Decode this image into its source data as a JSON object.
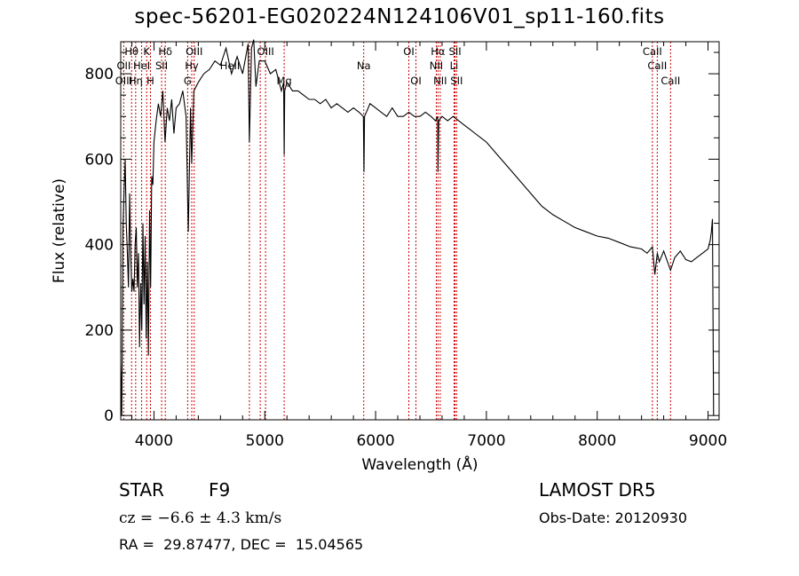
{
  "chart_data": {
    "type": "line",
    "title": "spec-56201-EG020224N124106V01_sp11-160.fits",
    "xlabel": "Wavelength (Å)",
    "ylabel": "Flux (relative)",
    "xlim": [
      3700,
      9100
    ],
    "ylim": [
      -10,
      875
    ],
    "xticks": [
      4000,
      5000,
      6000,
      7000,
      8000,
      9000
    ],
    "yticks": [
      0,
      200,
      400,
      600,
      800
    ],
    "grid": false,
    "series": [
      {
        "x": [
          3700,
          3710,
          3720,
          3730,
          3740,
          3750,
          3760,
          3770,
          3780,
          3790,
          3800,
          3810,
          3820,
          3830,
          3840,
          3850,
          3860,
          3870,
          3880,
          3890,
          3900,
          3910,
          3920,
          3930,
          3940,
          3950,
          3960,
          3970,
          3980,
          3990,
          4000,
          4020,
          4040,
          4060,
          4080,
          4100,
          4120,
          4140,
          4160,
          4180,
          4200,
          4230,
          4260,
          4290,
          4310,
          4330,
          4340,
          4360,
          4400,
          4450,
          4500,
          4550,
          4600,
          4650,
          4700,
          4750,
          4800,
          4850,
          4861,
          4880,
          4900,
          4920,
          4950,
          5000,
          5050,
          5100,
          5150,
          5170,
          5175,
          5180,
          5200,
          5250,
          5300,
          5350,
          5400,
          5450,
          5500,
          5550,
          5600,
          5650,
          5700,
          5750,
          5800,
          5850,
          5890,
          5895,
          5900,
          5950,
          6000,
          6050,
          6100,
          6150,
          6200,
          6250,
          6300,
          6350,
          6400,
          6450,
          6500,
          6540,
          6560,
          6563,
          6570,
          6600,
          6650,
          6700,
          6750,
          6800,
          6850,
          6900,
          6950,
          7000,
          7100,
          7200,
          7300,
          7400,
          7500,
          7600,
          7700,
          7800,
          7900,
          8000,
          8100,
          8200,
          8300,
          8400,
          8450,
          8498,
          8520,
          8542,
          8560,
          8600,
          8662,
          8700,
          8750,
          8800,
          8850,
          8900,
          8950,
          9000,
          9020,
          9030,
          9040,
          9050
        ],
        "values": [
          120,
          0,
          440,
          520,
          600,
          450,
          380,
          300,
          520,
          380,
          290,
          320,
          290,
          400,
          440,
          300,
          380,
          160,
          310,
          200,
          450,
          260,
          420,
          180,
          360,
          140,
          480,
          300,
          560,
          540,
          640,
          690,
          730,
          700,
          760,
          640,
          720,
          690,
          740,
          660,
          720,
          730,
          760,
          700,
          430,
          720,
          590,
          760,
          780,
          800,
          810,
          830,
          820,
          860,
          800,
          840,
          800,
          870,
          640,
          860,
          880,
          770,
          830,
          830,
          800,
          810,
          760,
          780,
          610,
          760,
          780,
          760,
          760,
          750,
          740,
          740,
          730,
          740,
          720,
          730,
          720,
          710,
          720,
          710,
          700,
          570,
          700,
          730,
          720,
          710,
          700,
          720,
          700,
          700,
          710,
          700,
          700,
          710,
          700,
          690,
          700,
          570,
          690,
          700,
          690,
          700,
          690,
          680,
          670,
          660,
          650,
          640,
          610,
          580,
          550,
          520,
          490,
          470,
          455,
          440,
          430,
          420,
          415,
          405,
          395,
          390,
          380,
          395,
          330,
          380,
          360,
          385,
          340,
          370,
          385,
          365,
          360,
          370,
          380,
          390,
          410,
          430,
          460,
          0
        ]
      }
    ],
    "lines": {
      "labels": [
        {
          "text": "Hθ",
          "x": 3798,
          "row": 1
        },
        {
          "text": "K",
          "x": 3934,
          "row": 1
        },
        {
          "text": "Hδ",
          "x": 4102,
          "row": 1
        },
        {
          "text": "OIII",
          "x": 4363,
          "row": 1
        },
        {
          "text": "OIII",
          "x": 5007,
          "row": 1
        },
        {
          "text": "OI",
          "x": 6300,
          "row": 1
        },
        {
          "text": "Hα",
          "x": 6563,
          "row": 1
        },
        {
          "text": "SII",
          "x": 6717,
          "row": 1
        },
        {
          "text": "CaII",
          "x": 8498,
          "row": 1
        },
        {
          "text": "OII",
          "x": 3727,
          "row": 2
        },
        {
          "text": "HeI",
          "x": 3889,
          "row": 2
        },
        {
          "text": "SII",
          "x": 4069,
          "row": 2
        },
        {
          "text": "Hγ",
          "x": 4341,
          "row": 2
        },
        {
          "text": "HeII",
          "x": 4686,
          "row": 2
        },
        {
          "text": "NII",
          "x": 6548,
          "row": 2
        },
        {
          "text": "Li",
          "x": 6708,
          "row": 2
        },
        {
          "text": "CaII",
          "x": 8542,
          "row": 2
        },
        {
          "text": "OIII",
          "x": 3727,
          "row": 3
        },
        {
          "text": "Hη",
          "x": 3835,
          "row": 3
        },
        {
          "text": "H",
          "x": 3968,
          "row": 3
        },
        {
          "text": "G",
          "x": 4304,
          "row": 3
        },
        {
          "text": "Mg",
          "x": 5175,
          "row": 3
        },
        {
          "text": "OI",
          "x": 6364,
          "row": 3
        },
        {
          "text": "NII",
          "x": 6583,
          "row": 3
        },
        {
          "text": "SII",
          "x": 6731,
          "row": 3
        },
        {
          "text": "CaII",
          "x": 8662,
          "row": 3
        },
        {
          "text": "Na",
          "x": 5893,
          "row": 2
        }
      ],
      "wavelengths": [
        3727,
        3798,
        3835,
        3889,
        3934,
        3968,
        4069,
        4102,
        4304,
        4341,
        4363,
        4861,
        4959,
        5007,
        5175,
        5893,
        6300,
        6364,
        6548,
        6563,
        6583,
        6708,
        6717,
        6731,
        8498,
        8542,
        8662
      ],
      "color": "#cc0000"
    }
  },
  "info": {
    "object_class": "STAR",
    "subclass": "F9",
    "survey": "LAMOST DR5",
    "redshift_line": "cz = −6.6 ± 4.3 km/s",
    "obs_date": "Obs-Date: 20120930",
    "coords": "RA =  29.87477, DEC =  15.04565"
  },
  "colors": {
    "spectrum": "#000000",
    "line_markers": "#cc0000",
    "axes": "#000000"
  }
}
